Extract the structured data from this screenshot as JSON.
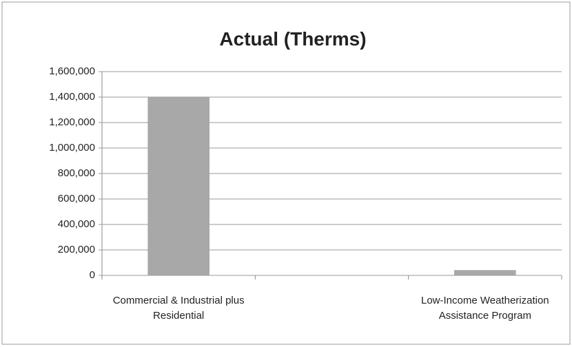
{
  "chart_data": {
    "type": "bar",
    "title": "Actual (Therms)",
    "categories": [
      "Commercial & Industrial plus Residential",
      null,
      "Low-Income Weatherization Assistance Program"
    ],
    "values": [
      1400000,
      null,
      40000
    ],
    "color": "#a8a8a8",
    "ylim": [
      0,
      1600000
    ],
    "yticks": [
      {
        "value": 0,
        "label": "0"
      },
      {
        "value": 200000,
        "label": "200,000"
      },
      {
        "value": 400000,
        "label": "400,000"
      },
      {
        "value": 600000,
        "label": "600,000"
      },
      {
        "value": 800000,
        "label": "800,000"
      },
      {
        "value": 1000000,
        "label": "1,000,000"
      },
      {
        "value": 1200000,
        "label": "1,200,000"
      },
      {
        "value": 1400000,
        "label": "1,400,000"
      },
      {
        "value": 1600000,
        "label": "1,600,000"
      }
    ],
    "grid": true
  }
}
